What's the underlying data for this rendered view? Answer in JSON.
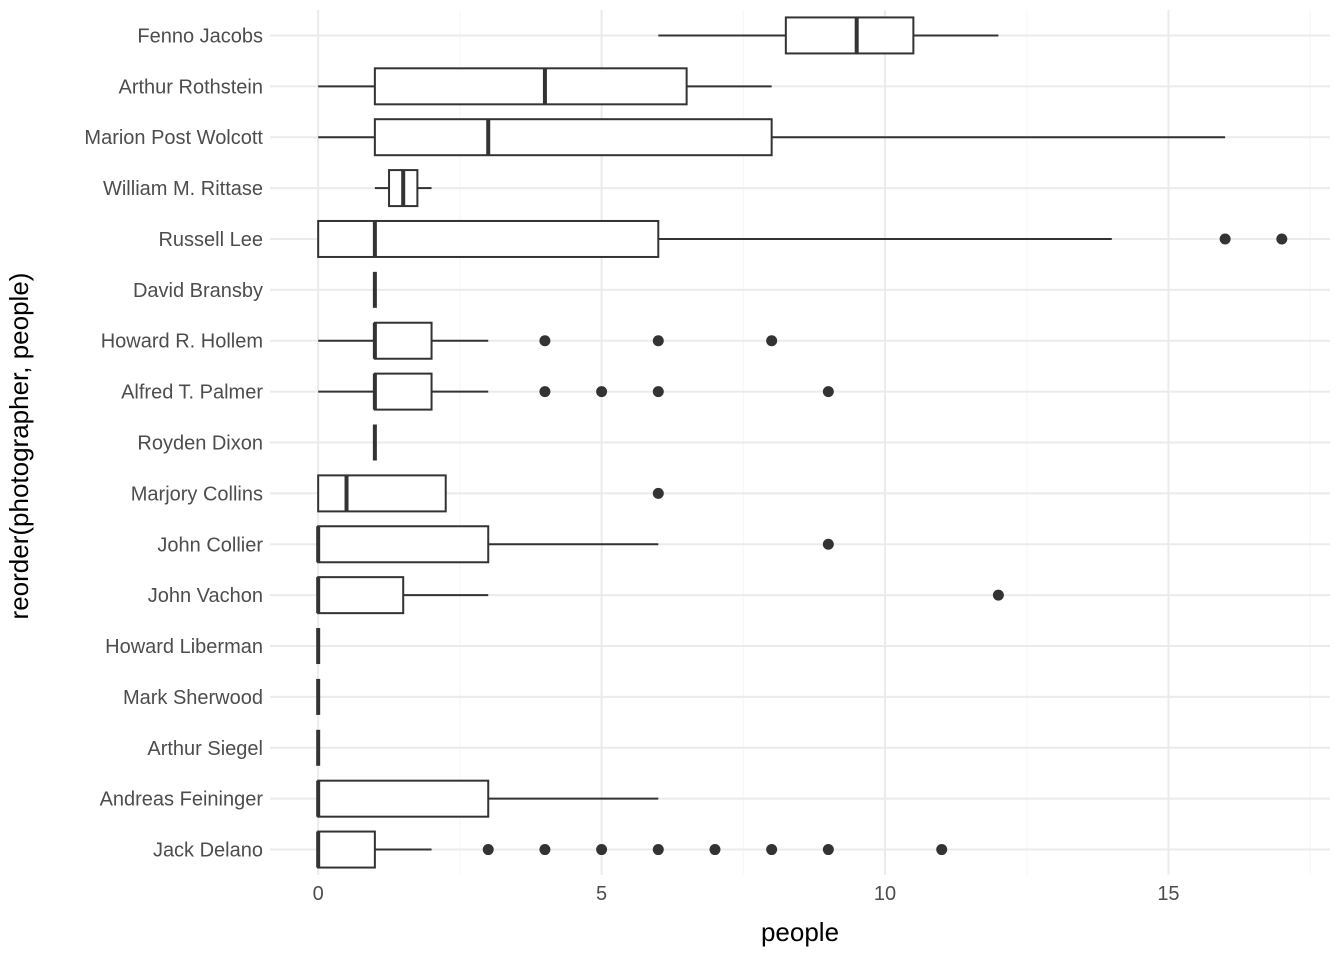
{
  "chart_data": {
    "type": "boxplot",
    "orientation": "horizontal",
    "title": "",
    "xlabel": "people",
    "ylabel": "reorder(photographer, people)",
    "xlim": [
      -0.85,
      17.85
    ],
    "xticks": [
      0,
      5,
      10,
      15
    ],
    "xtick_labels": [
      "0",
      "5",
      "10",
      "15"
    ],
    "grid": true,
    "colors": {
      "box": "#333333",
      "grid_major": "#ebebeb",
      "grid_minor": "#f5f5f5",
      "fill": "#ffffff"
    },
    "categories": [
      "Fenno Jacobs",
      "Arthur Rothstein",
      "Marion Post Wolcott",
      "William M. Rittase",
      "Russell Lee",
      "David Bransby",
      "Howard R. Hollem",
      "Alfred T. Palmer",
      "Royden Dixon",
      "Marjory Collins",
      "John Collier",
      "John Vachon",
      "Howard Liberman",
      "Mark Sherwood",
      "Arthur Siegel",
      "Andreas Feininger",
      "Jack Delano"
    ],
    "boxes": [
      {
        "name": "Fenno Jacobs",
        "wlo": 6,
        "q1": 8.25,
        "med": 9.5,
        "q3": 10.5,
        "whi": 12,
        "outliers": []
      },
      {
        "name": "Arthur Rothstein",
        "wlo": 0,
        "q1": 1,
        "med": 4,
        "q3": 6.5,
        "whi": 8,
        "outliers": []
      },
      {
        "name": "Marion Post Wolcott",
        "wlo": 0,
        "q1": 1,
        "med": 3,
        "q3": 8,
        "whi": 16,
        "outliers": []
      },
      {
        "name": "William M. Rittase",
        "wlo": 1,
        "q1": 1.25,
        "med": 1.5,
        "q3": 1.75,
        "whi": 2,
        "outliers": []
      },
      {
        "name": "Russell Lee",
        "wlo": 0,
        "q1": 0,
        "med": 1,
        "q3": 6,
        "whi": 14,
        "outliers": [
          16,
          17
        ]
      },
      {
        "name": "David Bransby",
        "wlo": 1,
        "q1": 1,
        "med": 1,
        "q3": 1,
        "whi": 1,
        "outliers": []
      },
      {
        "name": "Howard R. Hollem",
        "wlo": 0,
        "q1": 1,
        "med": 1,
        "q3": 2,
        "whi": 3,
        "outliers": [
          4,
          6,
          8
        ]
      },
      {
        "name": "Alfred T. Palmer",
        "wlo": 0,
        "q1": 1,
        "med": 1,
        "q3": 2,
        "whi": 3,
        "outliers": [
          4,
          5,
          6,
          9
        ]
      },
      {
        "name": "Royden Dixon",
        "wlo": 1,
        "q1": 1,
        "med": 1,
        "q3": 1,
        "whi": 1,
        "outliers": []
      },
      {
        "name": "Marjory Collins",
        "wlo": 0,
        "q1": 0,
        "med": 0.5,
        "q3": 2.25,
        "whi": 2.25,
        "outliers": [
          6
        ]
      },
      {
        "name": "John Collier",
        "wlo": 0,
        "q1": 0,
        "med": 0,
        "q3": 3,
        "whi": 6,
        "outliers": [
          9
        ]
      },
      {
        "name": "John Vachon",
        "wlo": 0,
        "q1": 0,
        "med": 0,
        "q3": 1.5,
        "whi": 3,
        "outliers": [
          12
        ]
      },
      {
        "name": "Howard Liberman",
        "wlo": 0,
        "q1": 0,
        "med": 0,
        "q3": 0,
        "whi": 0,
        "outliers": []
      },
      {
        "name": "Mark Sherwood",
        "wlo": 0,
        "q1": 0,
        "med": 0,
        "q3": 0,
        "whi": 0,
        "outliers": []
      },
      {
        "name": "Arthur Siegel",
        "wlo": 0,
        "q1": 0,
        "med": 0,
        "q3": 0,
        "whi": 0,
        "outliers": []
      },
      {
        "name": "Andreas Feininger",
        "wlo": 0,
        "q1": 0,
        "med": 0,
        "q3": 3,
        "whi": 6,
        "outliers": []
      },
      {
        "name": "Jack Delano",
        "wlo": 0,
        "q1": 0,
        "med": 0,
        "q3": 1,
        "whi": 2,
        "outliers": [
          3,
          4,
          5,
          6,
          7,
          8,
          9,
          11
        ]
      }
    ]
  }
}
